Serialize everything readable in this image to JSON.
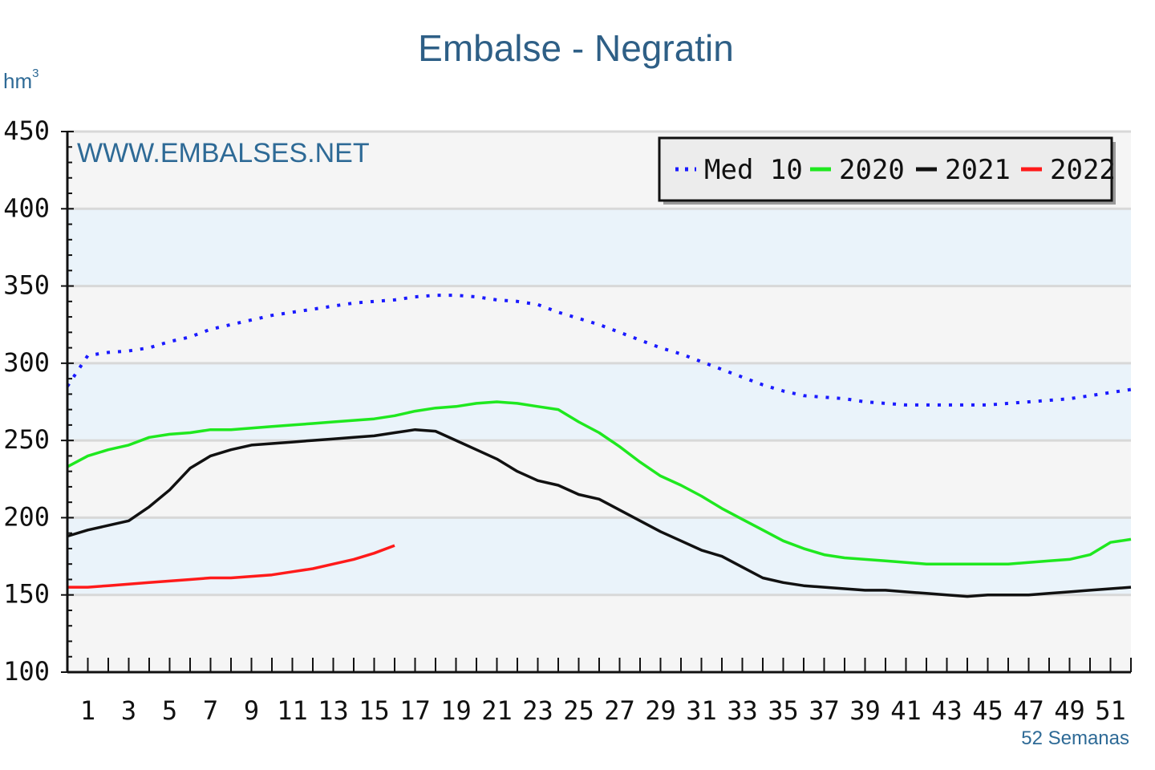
{
  "chart_data": {
    "type": "line",
    "title": "Embalse - Negratin",
    "y_unit_label": "hm",
    "y_unit_superscript": "3",
    "watermark": "WWW.EMBALSES.NET",
    "xlabel": "52 Semanas",
    "ylabel": "",
    "ylim": [
      100,
      450
    ],
    "xlim": [
      0,
      52
    ],
    "y_ticks": [
      100,
      150,
      200,
      250,
      300,
      350,
      400,
      450
    ],
    "x_ticks": [
      1,
      3,
      5,
      7,
      9,
      11,
      13,
      15,
      17,
      19,
      21,
      23,
      25,
      27,
      29,
      31,
      33,
      35,
      37,
      39,
      41,
      43,
      45,
      47,
      49,
      51
    ],
    "grid": true,
    "legend_position": "top-right",
    "bands": [
      [
        150,
        200
      ],
      [
        250,
        300
      ],
      [
        350,
        400
      ]
    ],
    "colors": {
      "band": "#eaf3fa",
      "plot_bg": "#f5f5f5",
      "grid": "#d8d8d8",
      "med10": "#1a1aff",
      "y2020": "#1fe81f",
      "y2021": "#111111",
      "y2022": "#ff1a1a"
    },
    "series": [
      {
        "name": "Med 10",
        "style": "dotted",
        "color": "#1a1aff",
        "x": [
          0,
          1,
          2,
          3,
          4,
          5,
          6,
          7,
          8,
          9,
          10,
          11,
          12,
          13,
          14,
          15,
          16,
          17,
          18,
          19,
          20,
          21,
          22,
          23,
          24,
          25,
          26,
          27,
          28,
          29,
          30,
          31,
          32,
          33,
          34,
          35,
          36,
          37,
          38,
          39,
          40,
          41,
          42,
          43,
          44,
          45,
          46,
          47,
          48,
          49,
          50,
          51,
          52
        ],
        "values": [
          285,
          305,
          307,
          308,
          310,
          314,
          317,
          322,
          325,
          328,
          331,
          333,
          335,
          337,
          339,
          340,
          341,
          343,
          344,
          344,
          343,
          341,
          340,
          338,
          333,
          329,
          325,
          320,
          315,
          310,
          306,
          301,
          296,
          291,
          286,
          282,
          279,
          278,
          277,
          275,
          274,
          273,
          273,
          273,
          273,
          273,
          274,
          275,
          276,
          277,
          279,
          281,
          283
        ]
      },
      {
        "name": "2020",
        "style": "solid",
        "color": "#1fe81f",
        "x": [
          0,
          1,
          2,
          3,
          4,
          5,
          6,
          7,
          8,
          9,
          10,
          11,
          12,
          13,
          14,
          15,
          16,
          17,
          18,
          19,
          20,
          21,
          22,
          23,
          24,
          25,
          26,
          27,
          28,
          29,
          30,
          31,
          32,
          33,
          34,
          35,
          36,
          37,
          38,
          39,
          40,
          41,
          42,
          43,
          44,
          45,
          46,
          47,
          48,
          49,
          50,
          51,
          52
        ],
        "values": [
          233,
          240,
          244,
          247,
          252,
          254,
          255,
          257,
          257,
          258,
          259,
          260,
          261,
          262,
          263,
          264,
          266,
          269,
          271,
          272,
          274,
          275,
          274,
          272,
          270,
          262,
          255,
          246,
          236,
          227,
          221,
          214,
          206,
          199,
          192,
          185,
          180,
          176,
          174,
          173,
          172,
          171,
          170,
          170,
          170,
          170,
          170,
          171,
          172,
          173,
          176,
          184,
          186
        ]
      },
      {
        "name": "2021",
        "style": "solid",
        "color": "#111111",
        "x": [
          0,
          1,
          2,
          3,
          4,
          5,
          6,
          7,
          8,
          9,
          10,
          11,
          12,
          13,
          14,
          15,
          16,
          17,
          18,
          19,
          20,
          21,
          22,
          23,
          24,
          25,
          26,
          27,
          28,
          29,
          30,
          31,
          32,
          33,
          34,
          35,
          36,
          37,
          38,
          39,
          40,
          41,
          42,
          43,
          44,
          45,
          46,
          47,
          48,
          49,
          50,
          51,
          52
        ],
        "values": [
          188,
          192,
          195,
          198,
          207,
          218,
          232,
          240,
          244,
          247,
          248,
          249,
          250,
          251,
          252,
          253,
          255,
          257,
          256,
          250,
          244,
          238,
          230,
          224,
          221,
          215,
          212,
          205,
          198,
          191,
          185,
          179,
          175,
          168,
          161,
          158,
          156,
          155,
          154,
          153,
          153,
          152,
          151,
          150,
          149,
          150,
          150,
          150,
          151,
          152,
          153,
          154,
          155
        ]
      },
      {
        "name": "2022",
        "style": "solid",
        "color": "#ff1a1a",
        "x": [
          0,
          1,
          2,
          3,
          4,
          5,
          6,
          7,
          8,
          9,
          10,
          11,
          12,
          13,
          14,
          15,
          16
        ],
        "values": [
          155,
          155,
          156,
          157,
          158,
          159,
          160,
          161,
          161,
          162,
          163,
          165,
          167,
          170,
          173,
          177,
          182
        ]
      }
    ]
  }
}
